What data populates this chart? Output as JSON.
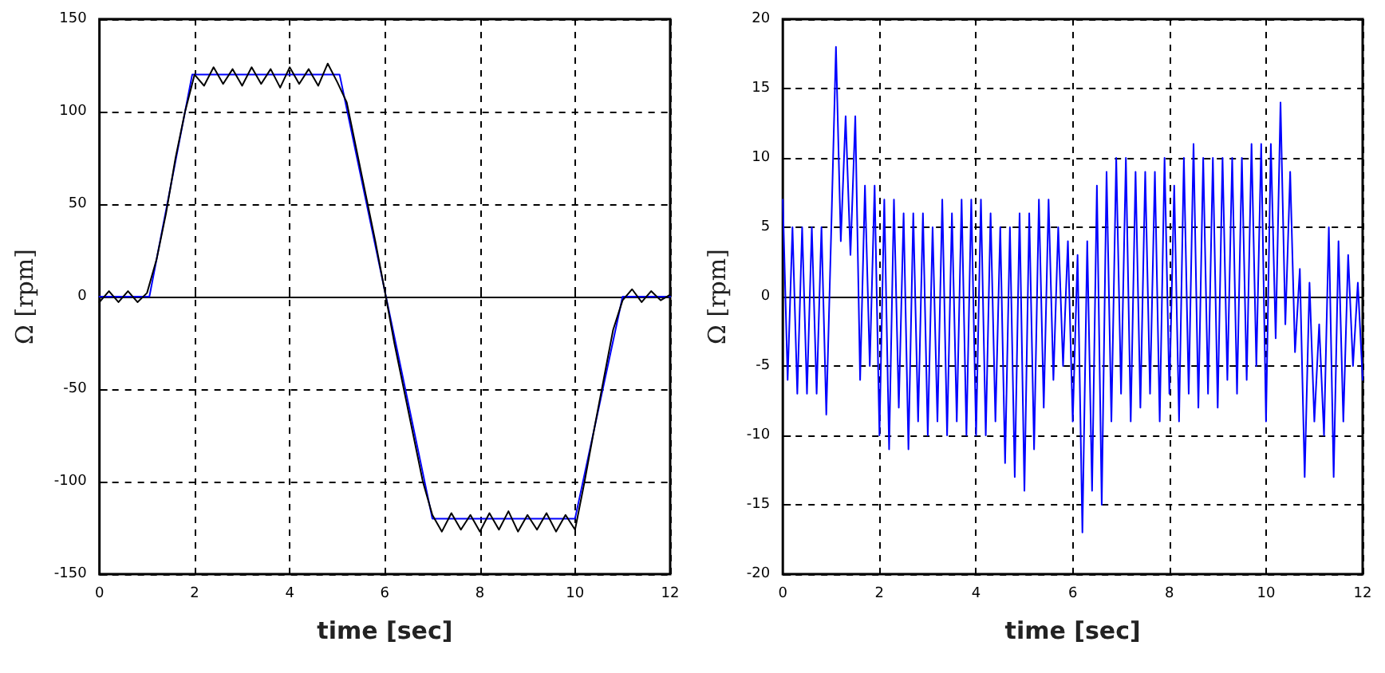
{
  "chart_data": [
    {
      "type": "line",
      "xlabel": "time [sec]",
      "ylabel": "Ω [rpm]",
      "xlim": [
        0,
        12
      ],
      "xticks": [
        0,
        2,
        4,
        6,
        8,
        10,
        12
      ],
      "ylim": [
        -150,
        150
      ],
      "yticks": [
        -150,
        -100,
        -50,
        0,
        50,
        100,
        150
      ],
      "grid": true,
      "marker": "none",
      "line_style": "solid",
      "series": [
        {
          "color": "#0000ff",
          "x": [
            0,
            1.05,
            1.95,
            5.05,
            7.0,
            10.0,
            11.0,
            12
          ],
          "values": [
            0,
            0,
            120,
            120,
            -120,
            -120,
            0,
            0
          ]
        },
        {
          "color": "#000000",
          "x": [
            0,
            0.2,
            0.4,
            0.6,
            0.8,
            1.0,
            1.2,
            1.4,
            1.6,
            1.8,
            2.0,
            2.2,
            2.4,
            2.6,
            2.8,
            3.0,
            3.2,
            3.4,
            3.6,
            3.8,
            4.0,
            4.2,
            4.4,
            4.6,
            4.8,
            5.0,
            5.2,
            5.4,
            5.6,
            5.8,
            6.0,
            6.2,
            6.4,
            6.6,
            6.8,
            7.0,
            7.2,
            7.4,
            7.6,
            7.8,
            8.0,
            8.2,
            8.4,
            8.6,
            8.8,
            9.0,
            9.2,
            9.4,
            9.6,
            9.8,
            10.0,
            10.2,
            10.4,
            10.6,
            10.8,
            11.0,
            11.2,
            11.4,
            11.6,
            11.8,
            12.0
          ],
          "values": [
            -3,
            3,
            -3,
            3,
            -3,
            2,
            20,
            45,
            75,
            100,
            120,
            114,
            124,
            115,
            123,
            114,
            124,
            115,
            123,
            113,
            124,
            115,
            123,
            114,
            126,
            116,
            105,
            80,
            55,
            30,
            3,
            -25,
            -50,
            -75,
            -100,
            -118,
            -127,
            -117,
            -126,
            -118,
            -127,
            -117,
            -126,
            -116,
            -127,
            -118,
            -126,
            -117,
            -127,
            -118,
            -126,
            -100,
            -72,
            -45,
            -18,
            -2,
            4,
            -3,
            3,
            -2,
            1
          ]
        }
      ]
    },
    {
      "type": "line",
      "xlabel": "time [sec]",
      "ylabel": "Ω [rpm]",
      "xlim": [
        0,
        12
      ],
      "xticks": [
        0,
        2,
        4,
        6,
        8,
        10,
        12
      ],
      "ylim": [
        -20,
        20
      ],
      "yticks": [
        -20,
        -15,
        -10,
        -5,
        0,
        5,
        10,
        15,
        20
      ],
      "grid": true,
      "marker": "none",
      "line_style": "solid",
      "series": [
        {
          "color": "#0000ff",
          "x": [
            0,
            0.1,
            0.2,
            0.3,
            0.4,
            0.5,
            0.6,
            0.7,
            0.8,
            0.9,
            1.0,
            1.1,
            1.2,
            1.3,
            1.4,
            1.5,
            1.6,
            1.7,
            1.8,
            1.9,
            2.0,
            2.1,
            2.2,
            2.3,
            2.4,
            2.5,
            2.6,
            2.7,
            2.8,
            2.9,
            3.0,
            3.1,
            3.2,
            3.3,
            3.4,
            3.5,
            3.6,
            3.7,
            3.8,
            3.9,
            4.0,
            4.1,
            4.2,
            4.3,
            4.4,
            4.5,
            4.6,
            4.7,
            4.8,
            4.9,
            5.0,
            5.1,
            5.2,
            5.3,
            5.4,
            5.5,
            5.6,
            5.7,
            5.8,
            5.9,
            6.0,
            6.1,
            6.2,
            6.3,
            6.4,
            6.5,
            6.6,
            6.7,
            6.8,
            6.9,
            7.0,
            7.1,
            7.2,
            7.3,
            7.4,
            7.5,
            7.6,
            7.7,
            7.8,
            7.9,
            8.0,
            8.1,
            8.2,
            8.3,
            8.4,
            8.5,
            8.6,
            8.7,
            8.8,
            8.9,
            9.0,
            9.1,
            9.2,
            9.3,
            9.4,
            9.5,
            9.6,
            9.7,
            9.8,
            9.9,
            10.0,
            10.1,
            10.2,
            10.3,
            10.4,
            10.5,
            10.6,
            10.7,
            10.8,
            10.9,
            11.0,
            11.1,
            11.2,
            11.3,
            11.4,
            11.5,
            11.6,
            11.7,
            11.8,
            11.9,
            12.0
          ],
          "values": [
            7,
            -6,
            5,
            -7,
            5,
            -7,
            5,
            -7,
            5,
            -8.5,
            4.5,
            18,
            4,
            13,
            3,
            13,
            -6,
            8,
            -5,
            8,
            -10,
            7,
            -11,
            7,
            -8,
            6,
            -11,
            6,
            -9,
            6,
            -10,
            5,
            -9,
            7,
            -10,
            6,
            -9,
            7,
            -10,
            7,
            -10,
            7,
            -10,
            6,
            -9,
            5,
            -12,
            5,
            -13,
            6,
            -14,
            6,
            -11,
            7,
            -8,
            7,
            -6,
            5,
            -5,
            4,
            -9,
            3,
            -17,
            4,
            -14,
            8,
            -15,
            9,
            -9,
            10,
            -7,
            10,
            -9,
            9,
            -8,
            9,
            -7,
            9,
            -9,
            10,
            -7,
            8,
            -9,
            10,
            -7,
            11,
            -8,
            10,
            -7,
            10,
            -8,
            10,
            -6,
            10,
            -7,
            10,
            -6,
            11,
            -5,
            11,
            -9,
            11,
            -3,
            14,
            -2,
            9,
            -4,
            2,
            -13,
            1,
            -9,
            -2,
            -10,
            5,
            -13,
            4,
            -9,
            3,
            -5,
            1,
            -6
          ]
        }
      ]
    }
  ]
}
